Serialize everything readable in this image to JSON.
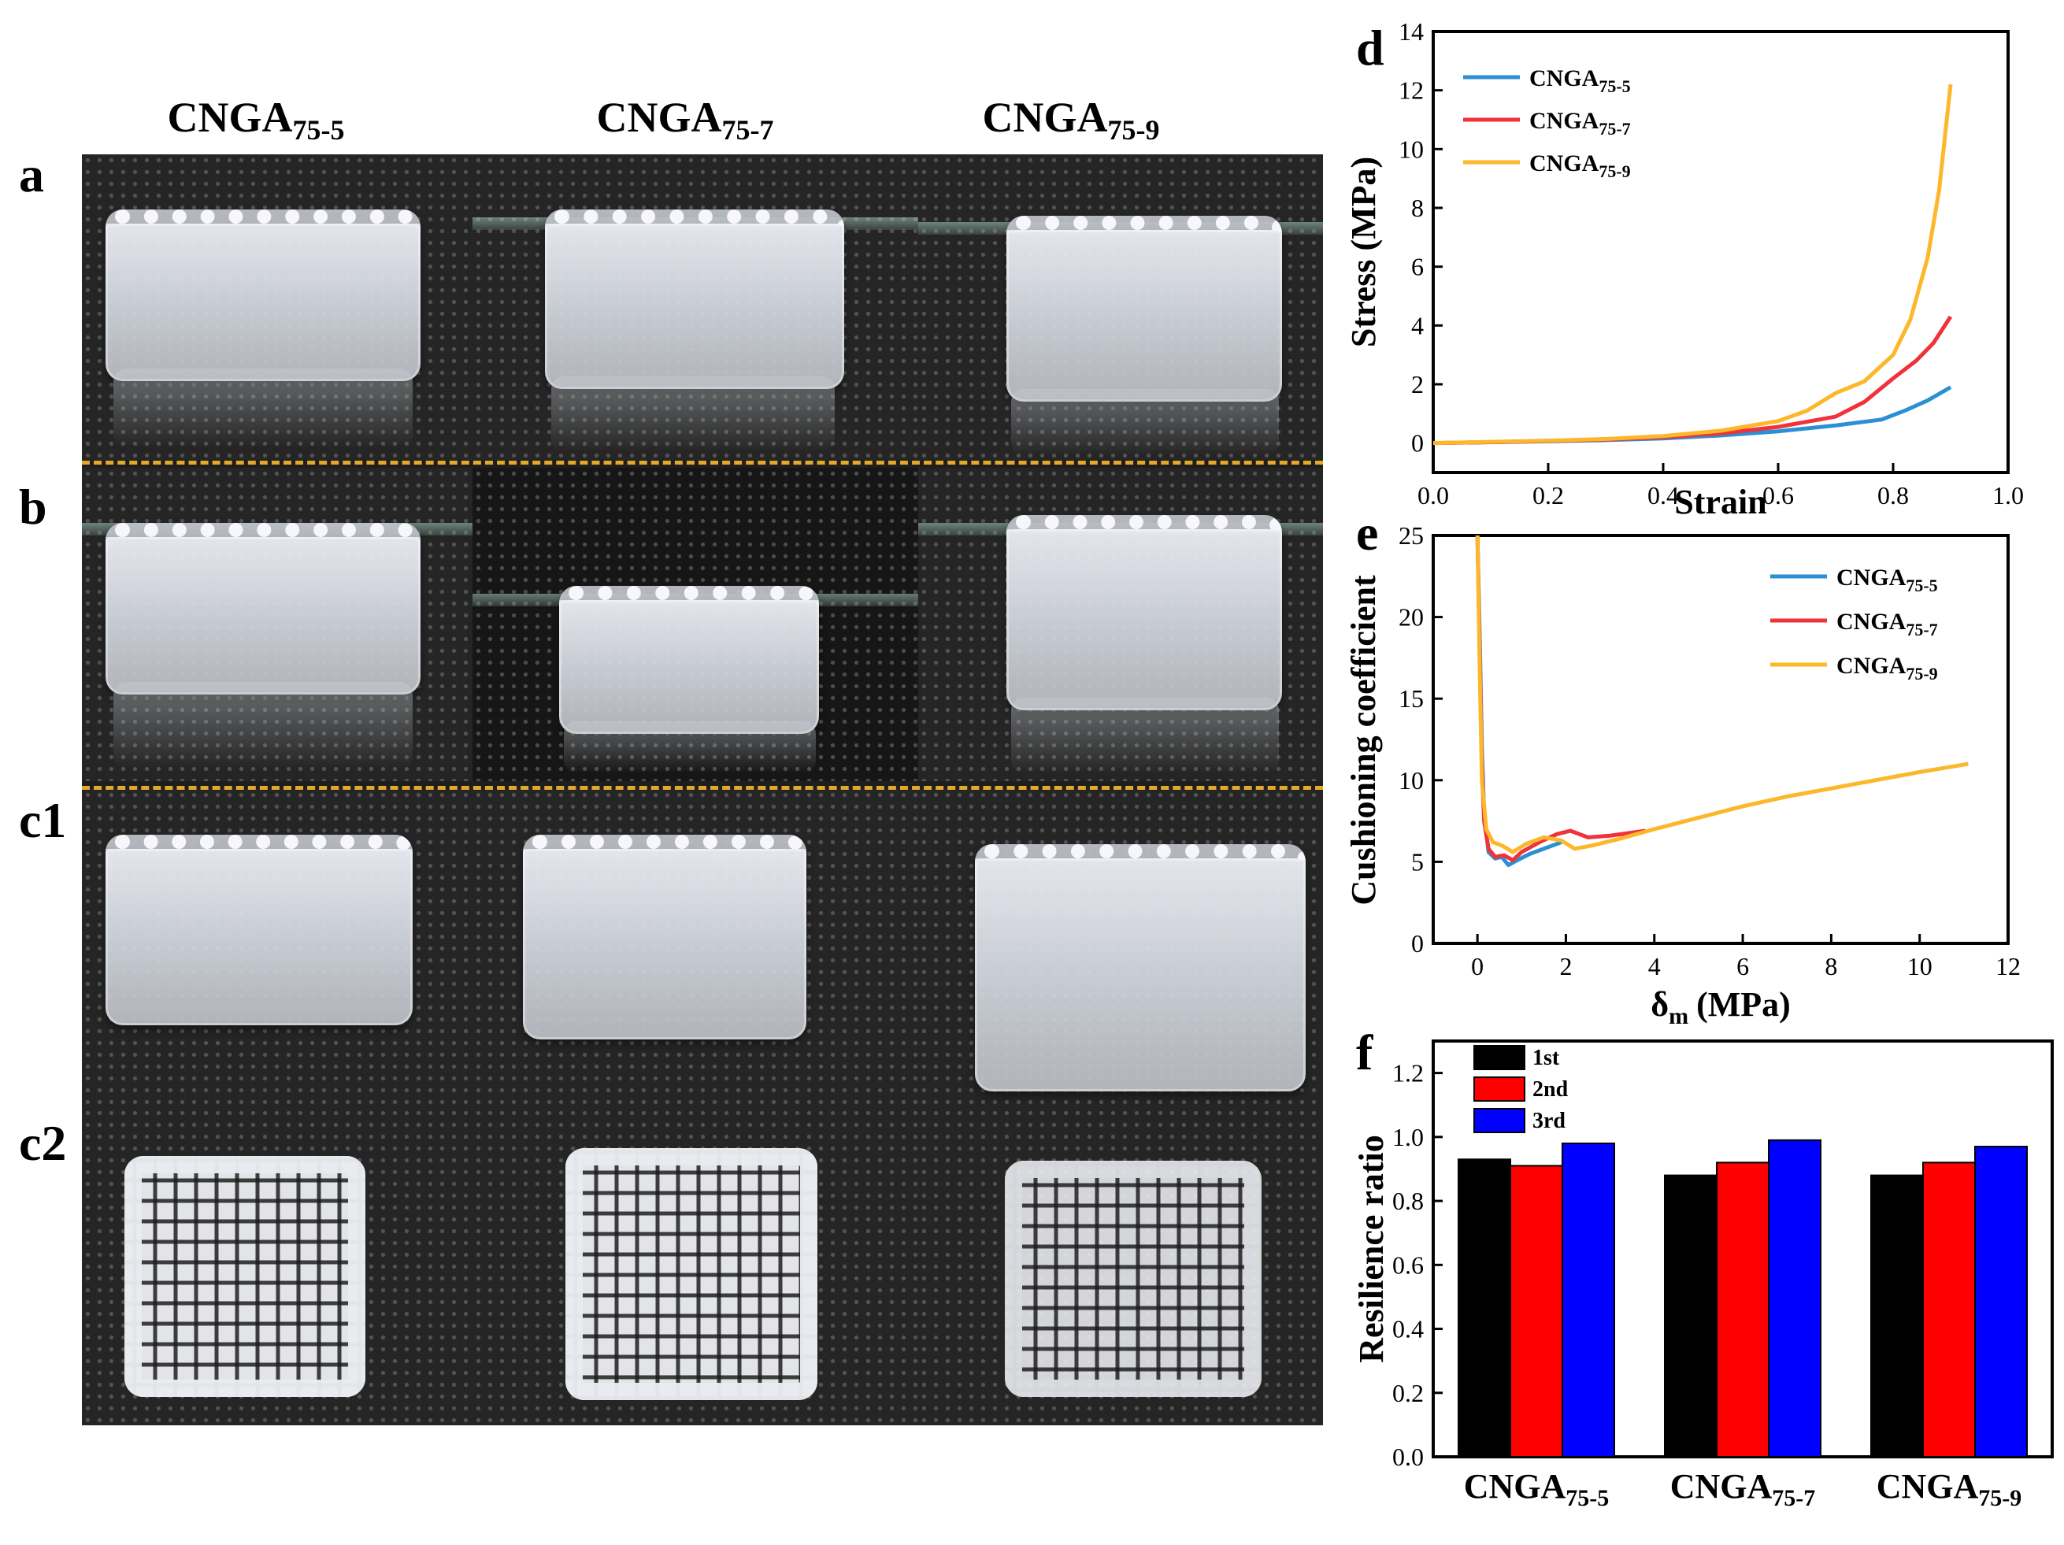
{
  "photo_panel": {
    "row_labels": [
      "a",
      "b",
      "c1",
      "c2"
    ],
    "columns": [
      {
        "base": "CNGA",
        "sub": "75-5"
      },
      {
        "base": "CNGA",
        "sub": "75-7"
      },
      {
        "base": "CNGA",
        "sub": "75-9"
      }
    ]
  },
  "colors": {
    "s1": "#2b8fd4",
    "s2": "#f0333a",
    "s3": "#fcb72a",
    "bar1": "#000000",
    "bar2": "#ff0000",
    "bar3": "#0000ff",
    "dash": "#e2a92b"
  },
  "chart_data": [
    {
      "panel": "d",
      "type": "line",
      "xlabel": "Strain",
      "ylabel": "Stress (MPa)",
      "xlim": [
        0,
        1.0
      ],
      "ylim": [
        -1,
        14
      ],
      "xticks": [
        0.0,
        0.2,
        0.4,
        0.6,
        0.8,
        1.0
      ],
      "yticks": [
        0,
        2,
        4,
        6,
        8,
        10,
        12,
        14
      ],
      "legend": "top-left",
      "series": [
        {
          "name": "CNGA",
          "sub": "75-5",
          "x": [
            0,
            0.1,
            0.2,
            0.3,
            0.4,
            0.5,
            0.6,
            0.7,
            0.78,
            0.82,
            0.86,
            0.9
          ],
          "y": [
            0,
            0.03,
            0.06,
            0.1,
            0.16,
            0.26,
            0.4,
            0.6,
            0.8,
            1.1,
            1.45,
            1.9
          ]
        },
        {
          "name": "CNGA",
          "sub": "75-7",
          "x": [
            0,
            0.1,
            0.2,
            0.3,
            0.4,
            0.5,
            0.6,
            0.7,
            0.75,
            0.8,
            0.84,
            0.87,
            0.9
          ],
          "y": [
            0,
            0.03,
            0.07,
            0.12,
            0.2,
            0.33,
            0.55,
            0.9,
            1.4,
            2.2,
            2.8,
            3.4,
            4.3
          ]
        },
        {
          "name": "CNGA",
          "sub": "75-9",
          "x": [
            0,
            0.1,
            0.2,
            0.3,
            0.4,
            0.5,
            0.6,
            0.65,
            0.7,
            0.75,
            0.8,
            0.83,
            0.86,
            0.88,
            0.9
          ],
          "y": [
            0,
            0.04,
            0.08,
            0.14,
            0.24,
            0.42,
            0.75,
            1.1,
            1.7,
            2.1,
            3.0,
            4.2,
            6.3,
            8.6,
            12.2
          ]
        }
      ]
    },
    {
      "panel": "e",
      "type": "line",
      "xlabel": "δ",
      "xlabel_sub": "m",
      "xlabel_unit": "(MPa)",
      "ylabel": "Cushioning coefficient",
      "xlim": [
        -1,
        12
      ],
      "ylim": [
        0,
        25
      ],
      "xticks": [
        0,
        2,
        4,
        6,
        8,
        10,
        12
      ],
      "yticks": [
        0,
        5,
        10,
        15,
        20,
        25
      ],
      "legend": "top-right",
      "series": [
        {
          "name": "CNGA",
          "sub": "75-5",
          "x": [
            0,
            0.05,
            0.1,
            0.15,
            0.25,
            0.4,
            0.55,
            0.7,
            0.9,
            1.2,
            1.5,
            1.9
          ],
          "y": [
            25,
            19,
            12,
            8,
            5.6,
            5.2,
            5.3,
            4.8,
            5.1,
            5.5,
            5.8,
            6.2
          ]
        },
        {
          "name": "CNGA",
          "sub": "75-7",
          "x": [
            0,
            0.05,
            0.1,
            0.15,
            0.25,
            0.4,
            0.6,
            0.8,
            1.0,
            1.4,
            1.8,
            2.1,
            2.5,
            3.0,
            3.8
          ],
          "y": [
            25,
            18,
            11,
            7.5,
            5.8,
            5.3,
            5.4,
            5.1,
            5.6,
            6.2,
            6.7,
            6.9,
            6.5,
            6.6,
            6.9
          ]
        },
        {
          "name": "CNGA",
          "sub": "75-9",
          "x": [
            0,
            0.05,
            0.1,
            0.2,
            0.35,
            0.55,
            0.8,
            1.1,
            1.5,
            1.9,
            2.2,
            2.6,
            3.2,
            4,
            5,
            6,
            7,
            8,
            9,
            10,
            11.1
          ],
          "y": [
            25,
            17,
            10,
            7,
            6.2,
            6.0,
            5.6,
            6.1,
            6.5,
            6.3,
            5.8,
            6.0,
            6.4,
            7.0,
            7.7,
            8.4,
            9.0,
            9.5,
            10.0,
            10.5,
            11.0
          ]
        }
      ]
    },
    {
      "panel": "f",
      "type": "bar",
      "ylabel": "Resilience ratio",
      "ylim": [
        0,
        1.3
      ],
      "yticks": [
        0.0,
        0.2,
        0.4,
        0.6,
        0.8,
        1.0,
        1.2
      ],
      "categories": [
        {
          "base": "CNGA",
          "sub": "75-5"
        },
        {
          "base": "CNGA",
          "sub": "75-7"
        },
        {
          "base": "CNGA",
          "sub": "75-9"
        }
      ],
      "legend": "top-left",
      "series": [
        {
          "name": "1st",
          "values": [
            0.93,
            0.88,
            0.88
          ]
        },
        {
          "name": "2nd",
          "values": [
            0.91,
            0.92,
            0.92
          ]
        },
        {
          "name": "3rd",
          "values": [
            0.98,
            0.99,
            0.97
          ]
        }
      ]
    }
  ]
}
